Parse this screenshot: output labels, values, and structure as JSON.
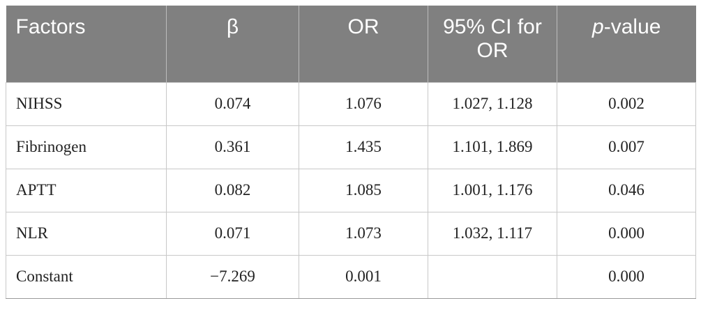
{
  "table": {
    "header": [
      "Factors",
      "β",
      "OR",
      "95% CI for OR",
      {
        "italic": "p",
        "rest": "-value"
      }
    ],
    "rows": [
      [
        "NIHSS",
        "0.074",
        "1.076",
        "1.027, 1.128",
        "0.002"
      ],
      [
        "Fibrinogen",
        "0.361",
        "1.435",
        "1.101, 1.869",
        "0.007"
      ],
      [
        "APTT",
        "0.082",
        "1.085",
        "1.001, 1.176",
        "0.046"
      ],
      [
        "NLR",
        "0.071",
        "1.073",
        "1.032, 1.117",
        "0.000"
      ],
      [
        "Constant",
        "−7.269",
        "0.001",
        null,
        "0.000"
      ]
    ]
  }
}
